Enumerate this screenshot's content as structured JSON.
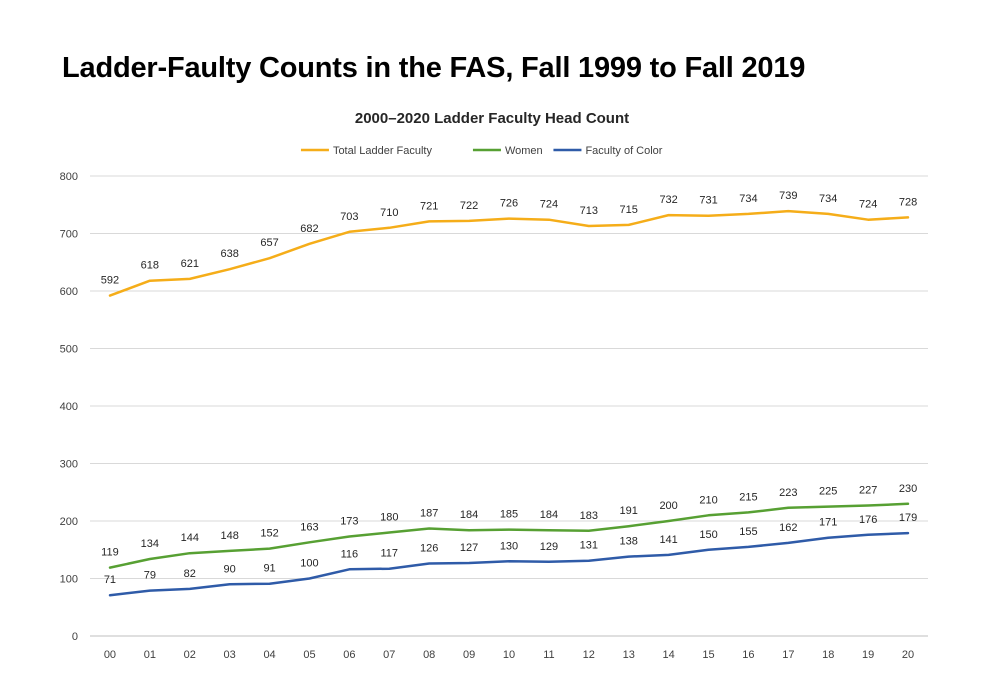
{
  "header": {
    "title": "Ladder-Faulty Counts in the FAS, Fall 1999 to Fall 2019"
  },
  "chart_data": {
    "type": "line",
    "title": "2000–2020 Ladder Faculty Head Count",
    "xlabel": "",
    "ylabel": "",
    "categories": [
      "00",
      "01",
      "02",
      "03",
      "04",
      "05",
      "06",
      "07",
      "08",
      "09",
      "10",
      "11",
      "12",
      "13",
      "14",
      "15",
      "16",
      "17",
      "18",
      "19",
      "20"
    ],
    "ylim": [
      0,
      800
    ],
    "yticks": [
      0,
      100,
      200,
      300,
      400,
      500,
      600,
      700,
      800
    ],
    "grid": true,
    "legend_position": "top",
    "series": [
      {
        "name": "Total Ladder Faculty",
        "color": "#f5ad19",
        "values": [
          592,
          618,
          621,
          638,
          657,
          682,
          703,
          710,
          721,
          722,
          726,
          724,
          713,
          715,
          732,
          731,
          734,
          739,
          734,
          724,
          728
        ]
      },
      {
        "name": "Women",
        "color": "#57a033",
        "values": [
          119,
          134,
          144,
          148,
          152,
          163,
          173,
          180,
          187,
          184,
          185,
          184,
          183,
          191,
          200,
          210,
          215,
          223,
          225,
          227,
          230
        ]
      },
      {
        "name": "Faculty of Color",
        "color": "#2f5ba8",
        "values": [
          71,
          79,
          82,
          90,
          91,
          100,
          116,
          117,
          126,
          127,
          130,
          129,
          131,
          138,
          141,
          150,
          155,
          162,
          171,
          176,
          179
        ]
      }
    ]
  }
}
